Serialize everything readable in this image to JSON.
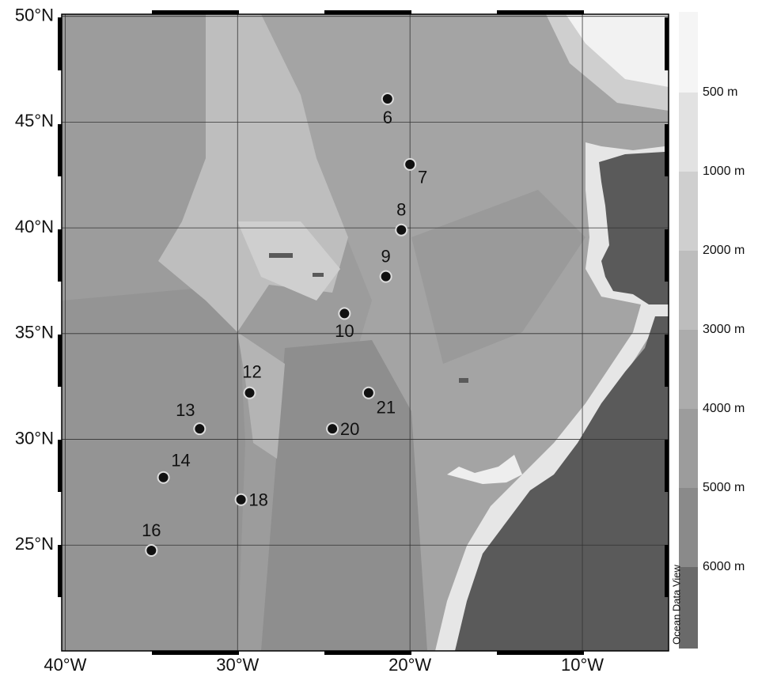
{
  "map": {
    "xlim": [
      -40.2,
      -5
    ],
    "ylim": [
      20,
      50.1
    ],
    "xticks": [
      {
        "value": -40,
        "label": "40°W"
      },
      {
        "value": -30,
        "label": "30°W"
      },
      {
        "value": -20,
        "label": "20°W"
      },
      {
        "value": -10,
        "label": "10°W"
      }
    ],
    "yticks": [
      {
        "value": 50,
        "label": "50°N"
      },
      {
        "value": 45,
        "label": "45°N"
      },
      {
        "value": 40,
        "label": "40°N"
      },
      {
        "value": 35,
        "label": "35°N"
      },
      {
        "value": 30,
        "label": "30°N"
      },
      {
        "value": 25,
        "label": "25°N"
      }
    ],
    "stations": [
      {
        "label": "6",
        "lon": -21.3,
        "lat": 46.1
      },
      {
        "label": "7",
        "lon": -20.0,
        "lat": 43.0
      },
      {
        "label": "8",
        "lon": -20.5,
        "lat": 39.9
      },
      {
        "label": "9",
        "lon": -21.4,
        "lat": 37.7
      },
      {
        "label": "10",
        "lon": -23.8,
        "lat": 35.95
      },
      {
        "label": "12",
        "lon": -29.3,
        "lat": 32.2
      },
      {
        "label": "13",
        "lon": -32.2,
        "lat": 30.5
      },
      {
        "label": "14",
        "lon": -34.3,
        "lat": 28.2
      },
      {
        "label": "16",
        "lon": -35.0,
        "lat": 24.75
      },
      {
        "label": "18",
        "lon": -29.8,
        "lat": 27.15
      },
      {
        "label": "20",
        "lon": -24.5,
        "lat": 30.5
      },
      {
        "label": "21",
        "lon": -22.4,
        "lat": 32.2
      }
    ],
    "colorbar": {
      "labels": [
        "500 m",
        "1000 m",
        "2000 m",
        "3000 m",
        "4000 m",
        "5000 m",
        "6000 m"
      ],
      "colors": [
        "#f5f5f5",
        "#e2e2e2",
        "#cfcfcf",
        "#bdbdbd",
        "#acacac",
        "#9c9c9c",
        "#8a8a8a",
        "#6a6a6a"
      ]
    },
    "credit": "Ocean Data View"
  }
}
